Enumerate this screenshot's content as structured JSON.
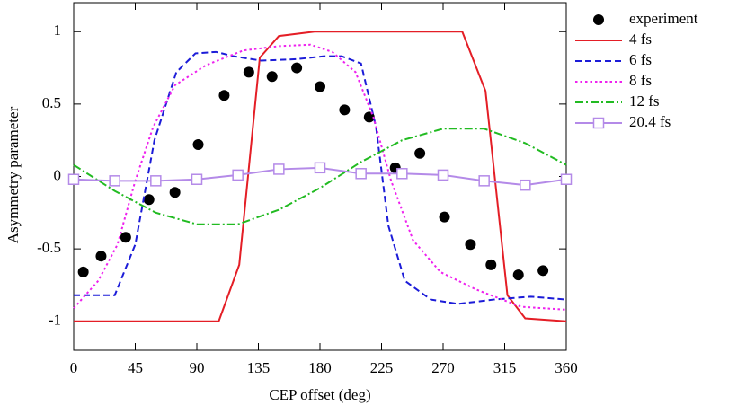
{
  "chart_data": {
    "type": "line",
    "x_label": "CEP offset (deg)",
    "y_label": "Asymmetry parameter",
    "xlim": [
      0,
      360
    ],
    "xticks": [
      0,
      45,
      90,
      135,
      180,
      225,
      270,
      315,
      360
    ],
    "ylim": [
      -1.2,
      1.2
    ],
    "yticks": [
      -1,
      -0.5,
      0,
      0.5,
      1
    ],
    "legend": "right",
    "series": [
      {
        "name": "experiment",
        "color": "#000000",
        "line": "none",
        "marker": "circle",
        "x": [
          7,
          20,
          38,
          55,
          74,
          91,
          110,
          128,
          145,
          163,
          180,
          198,
          216,
          235,
          253,
          271,
          290,
          305,
          325,
          343
        ],
        "values": [
          -0.66,
          -0.55,
          -0.42,
          -0.16,
          -0.11,
          0.22,
          0.56,
          0.72,
          0.69,
          0.75,
          0.62,
          0.46,
          0.41,
          0.06,
          0.16,
          -0.28,
          -0.47,
          -0.61,
          -0.68,
          -0.65
        ]
      },
      {
        "name": "4 fs",
        "color": "#e41e26",
        "line": "solid",
        "marker": "none",
        "x": [
          0,
          106,
          121,
          136,
          150,
          176,
          284,
          301,
          317,
          330,
          360
        ],
        "values": [
          -1,
          -1,
          -0.61,
          0.82,
          0.97,
          1,
          1,
          0.59,
          -0.82,
          -0.98,
          -1
        ]
      },
      {
        "name": "6 fs",
        "color": "#1c1cd8",
        "line": "dashed",
        "marker": "none",
        "x": [
          0,
          30,
          45,
          59,
          75,
          89,
          104,
          117,
          137,
          163,
          183,
          196,
          210,
          221,
          230,
          242,
          261,
          281,
          307,
          334,
          360
        ],
        "values": [
          -0.82,
          -0.82,
          -0.47,
          0.25,
          0.72,
          0.85,
          0.86,
          0.83,
          0.8,
          0.81,
          0.83,
          0.83,
          0.78,
          0.34,
          -0.34,
          -0.72,
          -0.85,
          -0.88,
          -0.85,
          -0.83,
          -0.85
        ]
      },
      {
        "name": "8 fs",
        "color": "#ee22ee",
        "line": "dotted",
        "marker": "none",
        "x": [
          0,
          18,
          32,
          45,
          58,
          74,
          97,
          124,
          150,
          173,
          189,
          206,
          219,
          232,
          248,
          268,
          294,
          327,
          360
        ],
        "values": [
          -0.91,
          -0.72,
          -0.47,
          -0.03,
          0.34,
          0.63,
          0.77,
          0.87,
          0.9,
          0.91,
          0.86,
          0.72,
          0.41,
          -0.03,
          -0.44,
          -0.66,
          -0.78,
          -0.9,
          -0.92
        ]
      },
      {
        "name": "12 fs",
        "color": "#22bb22",
        "line": "dashdot",
        "marker": "none",
        "x": [
          0,
          30,
          60,
          90,
          120,
          150,
          180,
          210,
          240,
          270,
          300,
          330,
          360
        ],
        "values": [
          0.08,
          -0.1,
          -0.25,
          -0.33,
          -0.33,
          -0.23,
          -0.08,
          0.1,
          0.25,
          0.33,
          0.33,
          0.23,
          0.08
        ]
      },
      {
        "name": "20.4 fs",
        "color": "#b48ae8",
        "line": "solid",
        "marker": "square",
        "x": [
          0,
          30,
          60,
          90,
          120,
          150,
          180,
          210,
          240,
          270,
          300,
          330,
          360
        ],
        "values": [
          -0.02,
          -0.03,
          -0.03,
          -0.02,
          0.01,
          0.05,
          0.06,
          0.02,
          0.02,
          0.01,
          -0.03,
          -0.06,
          -0.02
        ]
      }
    ]
  }
}
